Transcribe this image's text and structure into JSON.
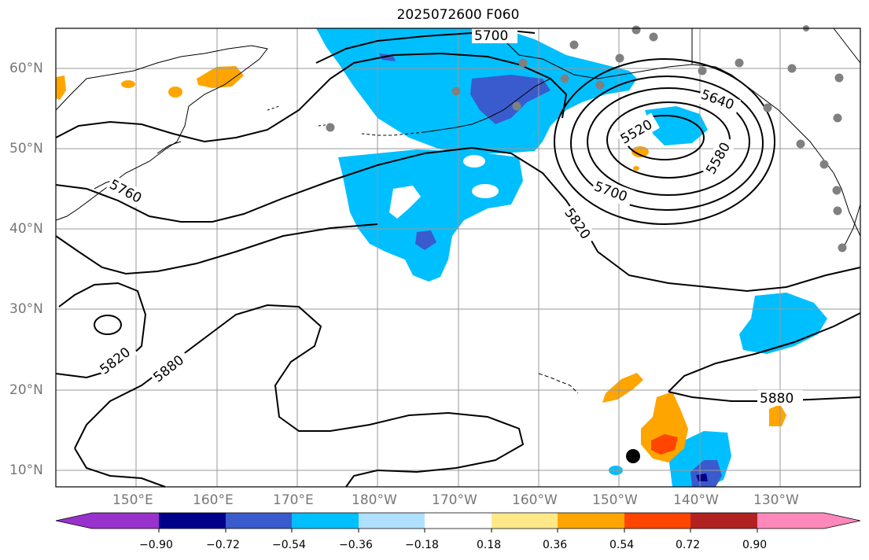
{
  "title": "2025072600 F060",
  "lat_labels": [
    "60°N",
    "50°N",
    "40°N",
    "30°N",
    "20°N",
    "10°N"
  ],
  "lon_labels": [
    "150°E",
    "160°E",
    "170°E",
    "180°W",
    "170°W",
    "160°W",
    "150°W",
    "140°W",
    "130°W"
  ],
  "contour_labels": [
    "5700",
    "5640",
    "5520",
    "5580",
    "5700",
    "5760",
    "5820",
    "5820",
    "5880",
    "5880"
  ],
  "colorbar": {
    "ticks": [
      "−0.90",
      "−0.72",
      "−0.54",
      "−0.36",
      "−0.18",
      "0.18",
      "0.36",
      "0.54",
      "0.72",
      "0.90"
    ],
    "colors": [
      "#9932cc",
      "#00008b",
      "#3a5bcd",
      "#00bfff",
      "#b0e0ff",
      "#ffffff",
      "#ffe888",
      "#ffa500",
      "#ff4500",
      "#b22222",
      "#ff88bb"
    ]
  },
  "colors": {
    "fill_neg_036": "#00bfff",
    "fill_neg_054": "#3a5bcd",
    "fill_neg_072": "#00008b",
    "fill_pos_036": "#ffa500",
    "fill_pos_054": "#ff4500",
    "station": "#808080",
    "storm_marker": "#000000"
  }
}
